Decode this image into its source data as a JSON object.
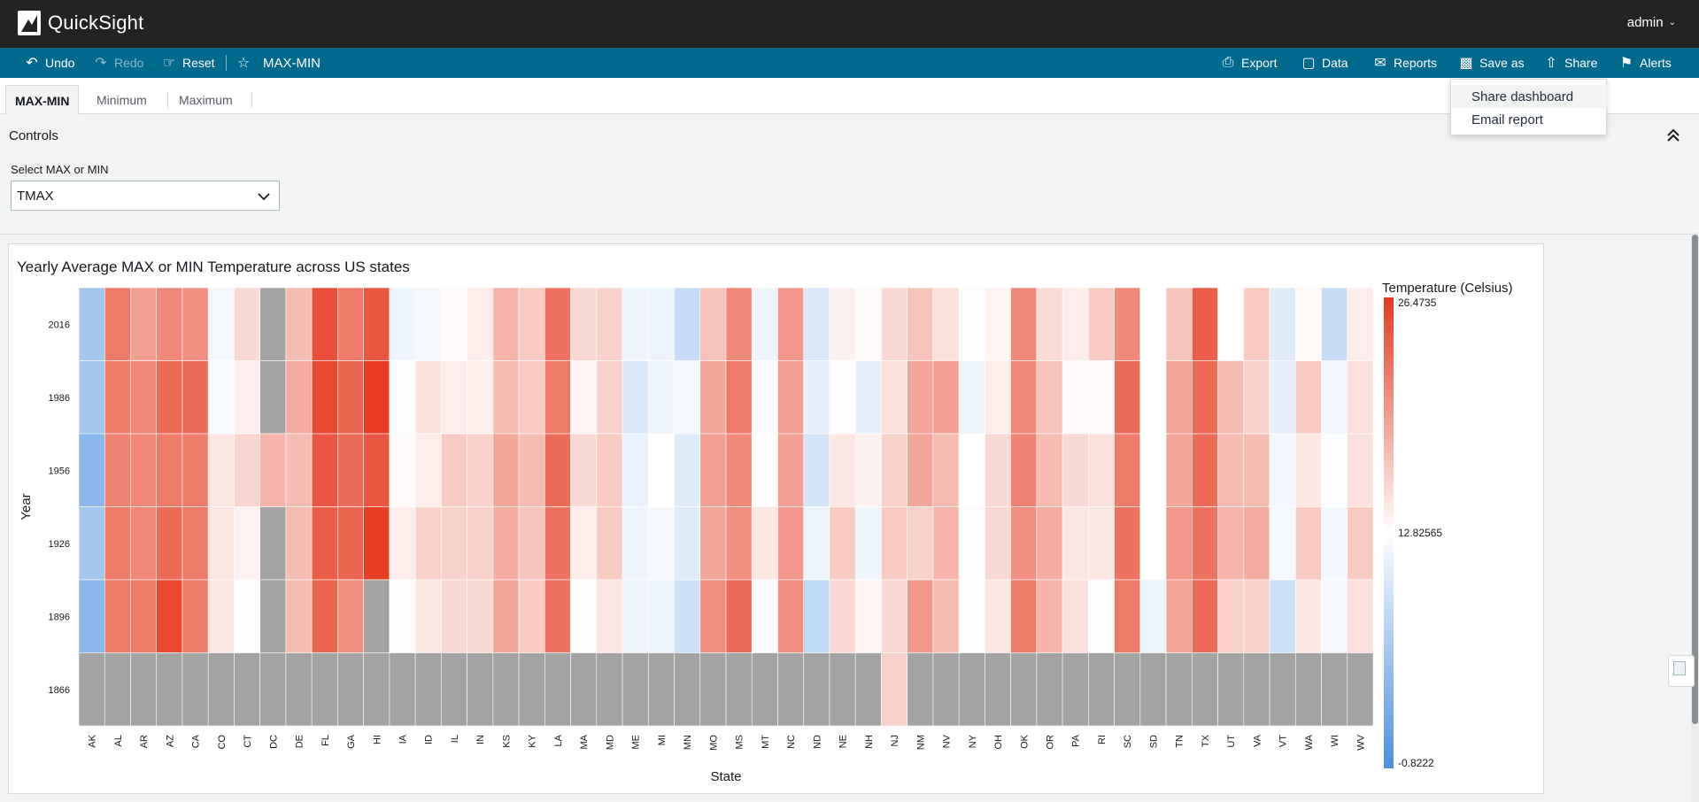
{
  "app": {
    "name": "QuickSight",
    "user": "admin"
  },
  "toolbar": {
    "undo": "Undo",
    "redo": "Redo",
    "reset": "Reset",
    "sheet_title": "MAX-MIN",
    "export": "Export",
    "data": "Data",
    "reports": "Reports",
    "save_as": "Save as",
    "share": "Share",
    "alerts": "Alerts"
  },
  "tabs": [
    "MAX-MIN",
    "Minimum",
    "Maximum"
  ],
  "share_menu": [
    "Share dashboard",
    "Email report"
  ],
  "controls": {
    "title": "Controls",
    "select_label": "Select MAX or MIN",
    "select_value": "TMAX"
  },
  "visual": {
    "title": "Yearly Average MAX or MIN Temperature across US states"
  },
  "colors": {
    "low": "#4a90e2",
    "mid": "#ffffff",
    "high": "#e63a1e",
    "null": "#a3a3a3",
    "toolbar": "#006a8e",
    "topbar": "#232323"
  },
  "chart_data": {
    "type": "heatmap",
    "xlabel": "State",
    "ylabel": "Year",
    "legend_title": "Temperature (Celsius)",
    "legend_labels": [
      "26.4735",
      "12.82565",
      "-0.8222"
    ],
    "color_range": [
      -0.8222,
      26.4735
    ],
    "x": [
      "AK",
      "AL",
      "AR",
      "AZ",
      "CA",
      "CO",
      "CT",
      "DC",
      "DE",
      "FL",
      "GA",
      "HI",
      "IA",
      "ID",
      "IL",
      "IN",
      "KS",
      "KY",
      "LA",
      "MA",
      "MD",
      "ME",
      "MI",
      "MN",
      "MO",
      "MS",
      "MT",
      "NC",
      "ND",
      "NE",
      "NH",
      "NJ",
      "NM",
      "NV",
      "NY",
      "OH",
      "OK",
      "OR",
      "PA",
      "RI",
      "SC",
      "SD",
      "TN",
      "TX",
      "UT",
      "VA",
      "VT",
      "WA",
      "WI",
      "WV"
    ],
    "y": [
      "2016",
      "1986",
      "1956",
      "1926",
      "1896",
      "1866"
    ],
    "values": [
      [
        6,
        22,
        19.5,
        21,
        20.5,
        12,
        15.5,
        null,
        17.5,
        25,
        22,
        24.5,
        11.5,
        12,
        13.2,
        14,
        18,
        16.5,
        22.5,
        15.5,
        16,
        11.5,
        11.5,
        8.5,
        17,
        21,
        11.5,
        20,
        10,
        13.8,
        13.2,
        15.5,
        17,
        15,
        12.5,
        13.6,
        21,
        15.3,
        14,
        16.5,
        21,
        12.8,
        17,
        24,
        12.8,
        16.5,
        10.5,
        13.3,
        8.5,
        14
      ],
      [
        6,
        22,
        21,
        23,
        23,
        12.2,
        13.9,
        null,
        18.5,
        25.5,
        23.5,
        26.4,
        12.5,
        14.8,
        14,
        14,
        17.5,
        16.5,
        22,
        13.5,
        16,
        10,
        11.5,
        12,
        19,
        22,
        12.5,
        19.5,
        11,
        12.5,
        11,
        15,
        19,
        19.5,
        11.5,
        14,
        21,
        17,
        13.2,
        13.2,
        23,
        12.8,
        19,
        23,
        17.5,
        16,
        11,
        16.5,
        11.8,
        15
      ],
      [
        4,
        21.5,
        21,
        22,
        22,
        14.5,
        15.8,
        18,
        17.5,
        24.5,
        23,
        24.5,
        13.2,
        14,
        16.5,
        16,
        19,
        17.5,
        23,
        15.5,
        16.5,
        11.2,
        12.8,
        10.5,
        19.5,
        21,
        12.8,
        19.5,
        9.5,
        14.5,
        13.8,
        16,
        19,
        17.5,
        12.8,
        15.5,
        21.5,
        17.5,
        15.5,
        15,
        22,
        12.8,
        19,
        23,
        17.5,
        17.5,
        11.8,
        14.5,
        12.5,
        15
      ],
      [
        6,
        22,
        21,
        23,
        22,
        14.5,
        13.7,
        null,
        17.5,
        24,
        23.5,
        26.2,
        14,
        16,
        16,
        16,
        18.5,
        17,
        22.5,
        14,
        16.5,
        11.5,
        12,
        10.5,
        19,
        20.5,
        14.5,
        20,
        11.5,
        16.5,
        11.5,
        16.5,
        16,
        18,
        12.5,
        15.5,
        20.5,
        18.5,
        14.5,
        14.5,
        22.5,
        12.8,
        20,
        22.5,
        18,
        18.5,
        12,
        16.5,
        11.8,
        16.5
      ],
      [
        4,
        22,
        22,
        25.5,
        22,
        14.5,
        12.5,
        null,
        17.5,
        23.5,
        20.5,
        null,
        13,
        14.5,
        15.5,
        15.5,
        19,
        16.5,
        22.5,
        13,
        14.5,
        11.5,
        11.5,
        9,
        20.5,
        23,
        12.5,
        20.5,
        8,
        15.5,
        13.5,
        15.5,
        20,
        17.5,
        12.5,
        14.5,
        22,
        18,
        15,
        13,
        22,
        11.5,
        19,
        23,
        16,
        16,
        9,
        14.5,
        12,
        15
      ],
      [
        null,
        null,
        null,
        null,
        null,
        null,
        null,
        null,
        null,
        null,
        null,
        null,
        null,
        null,
        null,
        null,
        null,
        null,
        null,
        null,
        null,
        null,
        null,
        null,
        null,
        null,
        null,
        null,
        null,
        null,
        null,
        16,
        null,
        null,
        null,
        null,
        null,
        null,
        null,
        null,
        null,
        null,
        null,
        null,
        null,
        null,
        null,
        null,
        null,
        null
      ]
    ]
  }
}
